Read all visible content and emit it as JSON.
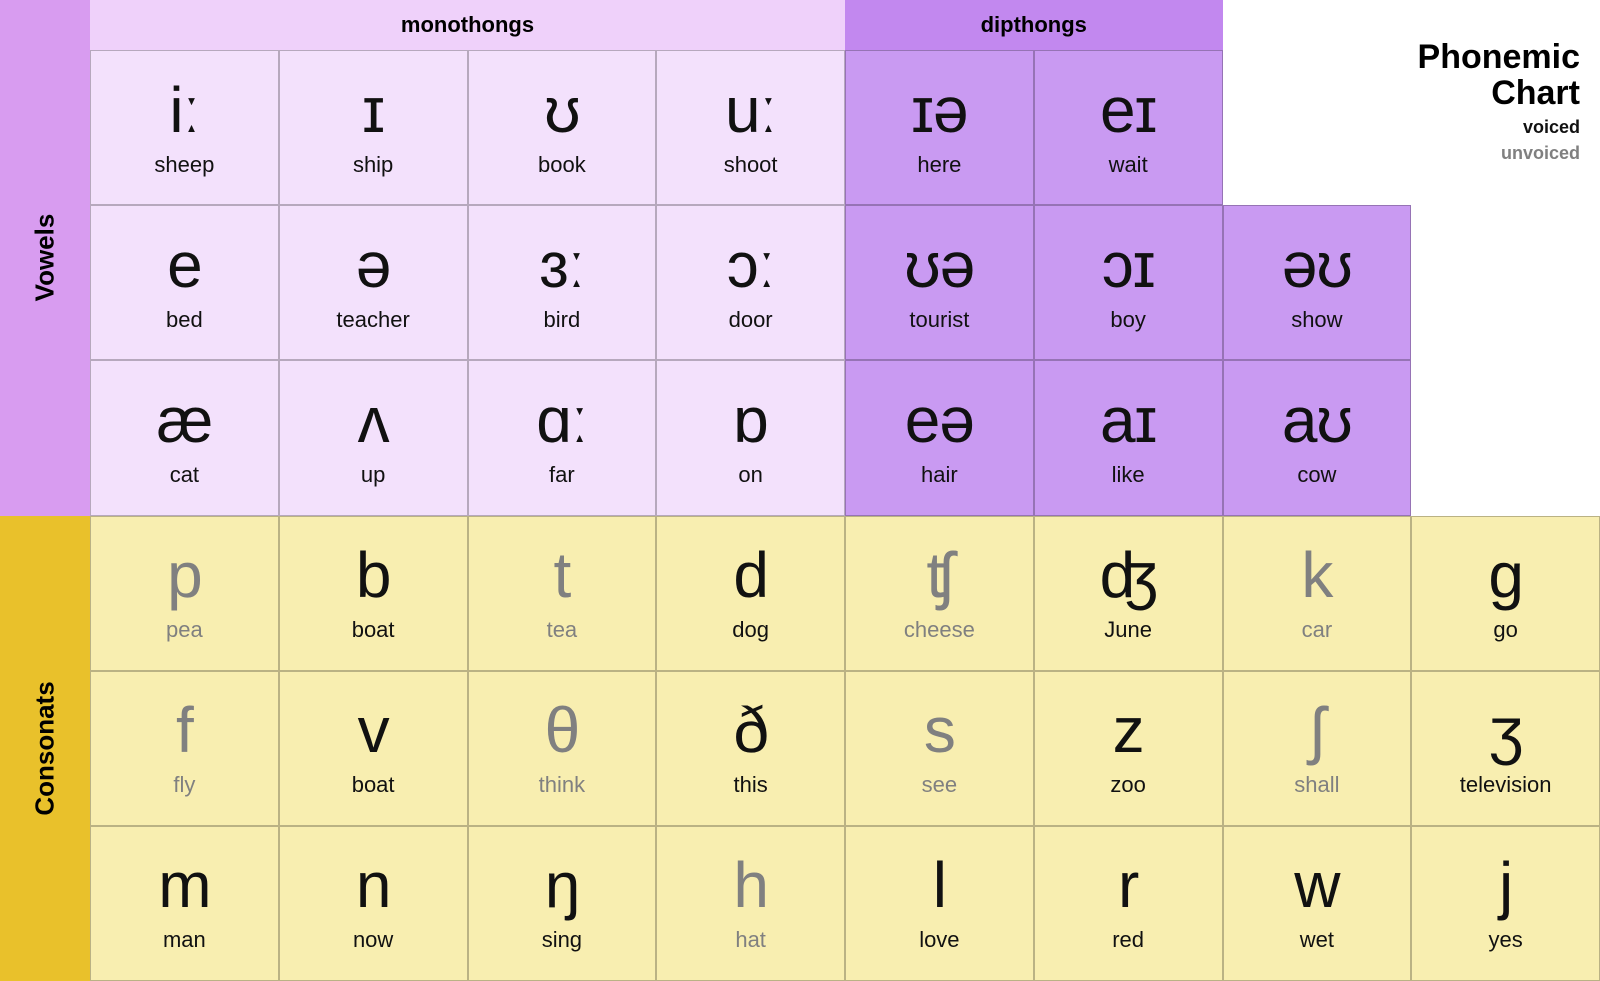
{
  "title": {
    "line1": "Phonemic",
    "line2": "Chart"
  },
  "legend": {
    "voiced": "voiced",
    "unvoiced": "unvoiced"
  },
  "sections": {
    "vowels": "Vowels",
    "consonants": "Consonats",
    "monothongs": "monothongs",
    "dipthongs": "dipthongs"
  },
  "colors": {
    "vowel_side": "#d89cf0",
    "consonant_side": "#e9c12b",
    "monothong_header": "#efd1fa",
    "dipthong_header": "#c288ef",
    "monothong_cell": "#f3e1fc",
    "dipthong_cell": "#c99af2",
    "consonant_cell": "#f8eeb0",
    "voiced_text": "#111111",
    "unvoiced_text": "#808080",
    "border": "rgba(0,0,0,0.25)",
    "background": "#ffffff"
  },
  "monothongs": [
    [
      {
        "sym": "iː",
        "word": "sheep"
      },
      {
        "sym": "ɪ",
        "word": "ship"
      },
      {
        "sym": "ʊ",
        "word": "book"
      },
      {
        "sym": "uː",
        "word": "shoot"
      }
    ],
    [
      {
        "sym": "e",
        "word": "bed"
      },
      {
        "sym": "ə",
        "word": "teacher"
      },
      {
        "sym": "ɜː",
        "word": "bird"
      },
      {
        "sym": "ɔː",
        "word": "door"
      }
    ],
    [
      {
        "sym": "æ",
        "word": "cat"
      },
      {
        "sym": "ʌ",
        "word": "up"
      },
      {
        "sym": "ɑː",
        "word": "far"
      },
      {
        "sym": "ɒ",
        "word": "on"
      }
    ]
  ],
  "dipthongs": [
    [
      {
        "sym": "ɪə",
        "word": "here"
      },
      {
        "sym": "eɪ",
        "word": "wait"
      }
    ],
    [
      {
        "sym": "ʊə",
        "word": "tourist"
      },
      {
        "sym": "ɔɪ",
        "word": "boy"
      },
      {
        "sym": "əʊ",
        "word": "show"
      }
    ],
    [
      {
        "sym": "eə",
        "word": "hair"
      },
      {
        "sym": "aɪ",
        "word": "like"
      },
      {
        "sym": "aʊ",
        "word": "cow"
      }
    ]
  ],
  "consonants": [
    [
      {
        "sym": "p",
        "word": "pea",
        "voiced": false
      },
      {
        "sym": "b",
        "word": "boat",
        "voiced": true
      },
      {
        "sym": "t",
        "word": "tea",
        "voiced": false
      },
      {
        "sym": "d",
        "word": "dog",
        "voiced": true
      },
      {
        "sym": "ʧ",
        "word": "cheese",
        "voiced": false
      },
      {
        "sym": "ʤ",
        "word": "June",
        "voiced": true
      },
      {
        "sym": "k",
        "word": "car",
        "voiced": false
      },
      {
        "sym": "g",
        "word": "go",
        "voiced": true
      }
    ],
    [
      {
        "sym": "f",
        "word": "fly",
        "voiced": false
      },
      {
        "sym": "v",
        "word": "boat",
        "voiced": true
      },
      {
        "sym": "θ",
        "word": "think",
        "voiced": false
      },
      {
        "sym": "ð",
        "word": "this",
        "voiced": true
      },
      {
        "sym": "s",
        "word": "see",
        "voiced": false
      },
      {
        "sym": "z",
        "word": "zoo",
        "voiced": true
      },
      {
        "sym": "ʃ",
        "word": "shall",
        "voiced": false
      },
      {
        "sym": "ʒ",
        "word": "television",
        "voiced": true
      }
    ],
    [
      {
        "sym": "m",
        "word": "man",
        "voiced": true
      },
      {
        "sym": "n",
        "word": "now",
        "voiced": true
      },
      {
        "sym": "ŋ",
        "word": "sing",
        "voiced": true
      },
      {
        "sym": "h",
        "word": "hat",
        "voiced": false
      },
      {
        "sym": "l",
        "word": "love",
        "voiced": true
      },
      {
        "sym": "r",
        "word": "red",
        "voiced": true
      },
      {
        "sym": "w",
        "word": "wet",
        "voiced": true
      },
      {
        "sym": "j",
        "word": "yes",
        "voiced": true
      }
    ]
  ]
}
